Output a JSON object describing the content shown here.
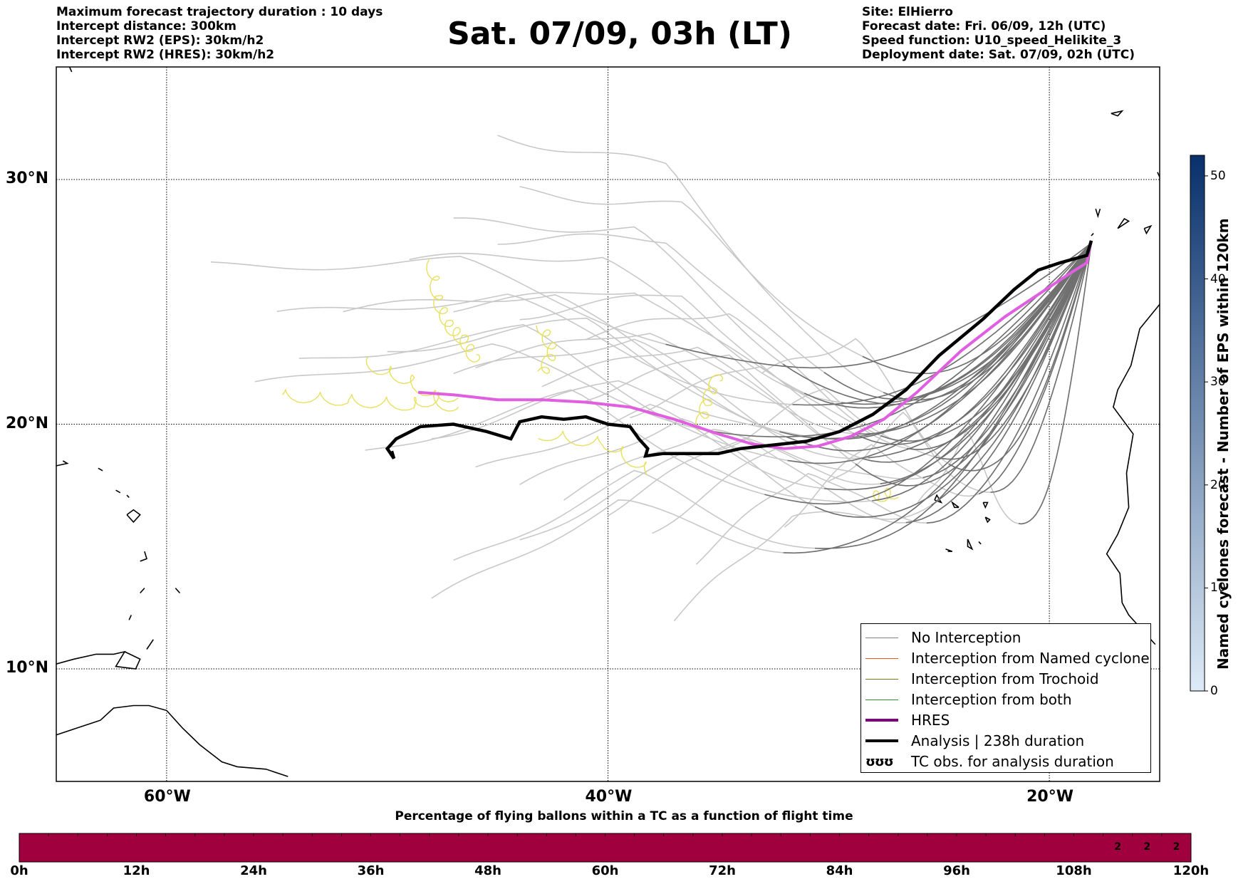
{
  "header": {
    "left": [
      "Maximum forecast trajectory duration : 10 days",
      "Intercept distance: 300km",
      "Intercept RW2 (EPS):  30km/h2",
      "Intercept RW2 (HRES): 30km/h2"
    ],
    "title": "Sat. 07/09, 03h (LT)",
    "right": [
      "Site: ElHierro",
      "Forecast date: Fri. 06/09, 12h (UTC)",
      "Speed function: U10_speed_Helikite_3",
      "Deployment date: Sat. 07/09, 02h (UTC)"
    ]
  },
  "map": {
    "lat_labels": [
      {
        "text": "30°N",
        "lat": 30
      },
      {
        "text": "20°N",
        "lat": 20
      },
      {
        "text": "10°N",
        "lat": 10
      }
    ],
    "lon_labels": [
      {
        "text": "60°W",
        "lon": -60
      },
      {
        "text": "40°W",
        "lon": -40
      },
      {
        "text": "20°W",
        "lon": -20
      }
    ],
    "lat_range": [
      5.4,
      34.6
    ],
    "lon_range": [
      -65,
      -15
    ],
    "colors": {
      "eps_track": "#c8c8c8",
      "eps_track_dark": "#707070",
      "trochoid": "#e8e060",
      "hres": "#e05ee0",
      "analysis": "#000000",
      "coast": "#000000"
    }
  },
  "legend": {
    "items": [
      {
        "label": "No Interception",
        "color": "#808080",
        "width": 1.5
      },
      {
        "label": "Interception from Named cyclone",
        "color": "#e8561e",
        "width": 1.5
      },
      {
        "label": "Interception from Trochoid",
        "color": "#7a7a1a",
        "width": 1.5
      },
      {
        "label": "Interception from both",
        "color": "#2e8b2e",
        "width": 1.5
      },
      {
        "label": "HRES",
        "color": "#800080",
        "width": 4
      },
      {
        "label": "Analysis | 238h duration",
        "color": "#000000",
        "width": 4
      }
    ],
    "glyph_item": {
      "glyph": "ʊʊʊ",
      "label": "TC obs. for analysis duration"
    }
  },
  "colorbar": {
    "title": "Named cyclones forecast - Number of EPS within 120km",
    "ticks": [
      "0",
      "10",
      "20",
      "30",
      "40",
      "50"
    ],
    "min": 0,
    "max": 52,
    "color_low": "#deebf7",
    "color_high": "#08306b"
  },
  "bottom_bar": {
    "title": "Percentage of flying ballons within a TC as a function of flight time",
    "time_labels": [
      "0h",
      "12h",
      "24h",
      "36h",
      "48h",
      "60h",
      "72h",
      "84h",
      "96h",
      "108h",
      "120h"
    ],
    "cell_color": "#a0003e",
    "cells_total": 40,
    "labeled_cells": [
      {
        "index": 37,
        "text": "2"
      },
      {
        "index": 38,
        "text": "2"
      },
      {
        "index": 39,
        "text": "2"
      }
    ]
  }
}
